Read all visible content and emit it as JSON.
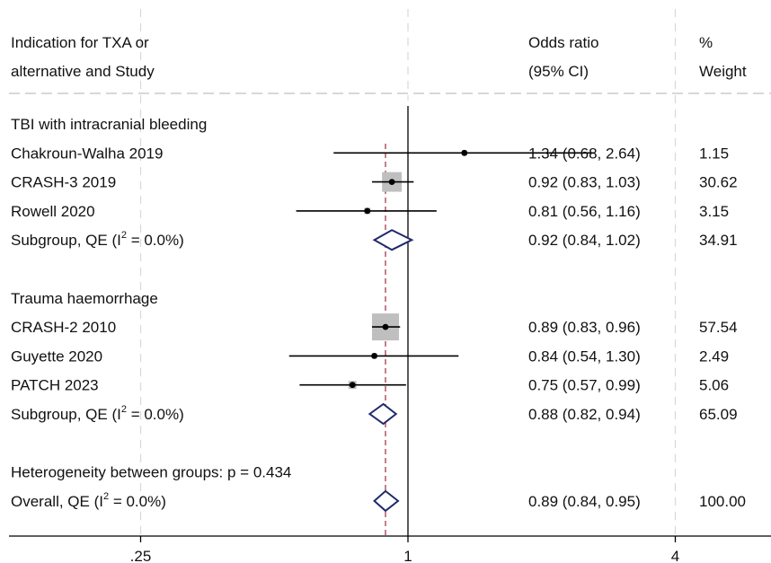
{
  "colors": {
    "square": "#bfbfbf",
    "diamond": "#1f2a6b",
    "overall_line": "#a0283c",
    "axis": "#000000",
    "grid": "#d8d8d8"
  },
  "chart_data": {
    "type": "forest",
    "headers": {
      "study_line1": "Indication for TXA or",
      "study_line2": "alternative and Study",
      "or_line1": "Odds ratio",
      "or_line2": "(95% CI)",
      "weight_line1": "%",
      "weight_line2": "Weight"
    },
    "x_axis": {
      "scale": "log",
      "ticks": [
        {
          "value": 0.25,
          "label": ".25"
        },
        {
          "value": 1,
          "label": "1"
        },
        {
          "value": 4,
          "label": "4"
        }
      ],
      "null_line": 1
    },
    "overall_line_value": 0.89,
    "rows": [
      {
        "kind": "group",
        "label": "TBI with intracranial bleeding"
      },
      {
        "kind": "study",
        "label": "Chakroun-Walha 2019",
        "or": 1.34,
        "lo": 0.68,
        "hi": 2.64,
        "ci_text": "1.34 (0.68, 2.64)",
        "weight": 1.15,
        "weight_text": "1.15"
      },
      {
        "kind": "study",
        "label": "CRASH-3 2019",
        "or": 0.92,
        "lo": 0.83,
        "hi": 1.03,
        "ci_text": "0.92 (0.83, 1.03)",
        "weight": 30.62,
        "weight_text": "30.62"
      },
      {
        "kind": "study",
        "label": "Rowell 2020",
        "or": 0.81,
        "lo": 0.56,
        "hi": 1.16,
        "ci_text": "0.81 (0.56, 1.16)",
        "weight": 3.15,
        "weight_text": "3.15"
      },
      {
        "kind": "subgroup",
        "label_prefix": "Subgroup, QE (I",
        "label_sup": "2",
        "label_suffix": " = 0.0%)",
        "or": 0.92,
        "lo": 0.84,
        "hi": 1.02,
        "ci_text": "0.92 (0.84, 1.02)",
        "weight_text": "34.91"
      },
      {
        "kind": "blank"
      },
      {
        "kind": "group",
        "label": "Trauma haemorrhage"
      },
      {
        "kind": "study",
        "label": "CRASH-2 2010",
        "or": 0.89,
        "lo": 0.83,
        "hi": 0.96,
        "ci_text": "0.89 (0.83, 0.96)",
        "weight": 57.54,
        "weight_text": "57.54"
      },
      {
        "kind": "study",
        "label": "Guyette 2020",
        "or": 0.84,
        "lo": 0.54,
        "hi": 1.3,
        "ci_text": "0.84 (0.54, 1.30)",
        "weight": 2.49,
        "weight_text": "2.49"
      },
      {
        "kind": "study",
        "label": "PATCH 2023",
        "or": 0.75,
        "lo": 0.57,
        "hi": 0.99,
        "ci_text": "0.75 (0.57, 0.99)",
        "weight": 5.06,
        "weight_text": "5.06"
      },
      {
        "kind": "subgroup",
        "label_prefix": "Subgroup, QE (I",
        "label_sup": "2",
        "label_suffix": " = 0.0%)",
        "or": 0.88,
        "lo": 0.82,
        "hi": 0.94,
        "ci_text": "0.88 (0.82, 0.94)",
        "weight_text": "65.09"
      },
      {
        "kind": "blank"
      },
      {
        "kind": "note",
        "label": "Heterogeneity between groups: p = 0.434"
      },
      {
        "kind": "overall",
        "label_prefix": "Overall, QE (I",
        "label_sup": "2",
        "label_suffix": " = 0.0%)",
        "or": 0.89,
        "lo": 0.84,
        "hi": 0.95,
        "ci_text": "0.89 (0.84, 0.95)",
        "weight_text": "100.00"
      }
    ]
  }
}
